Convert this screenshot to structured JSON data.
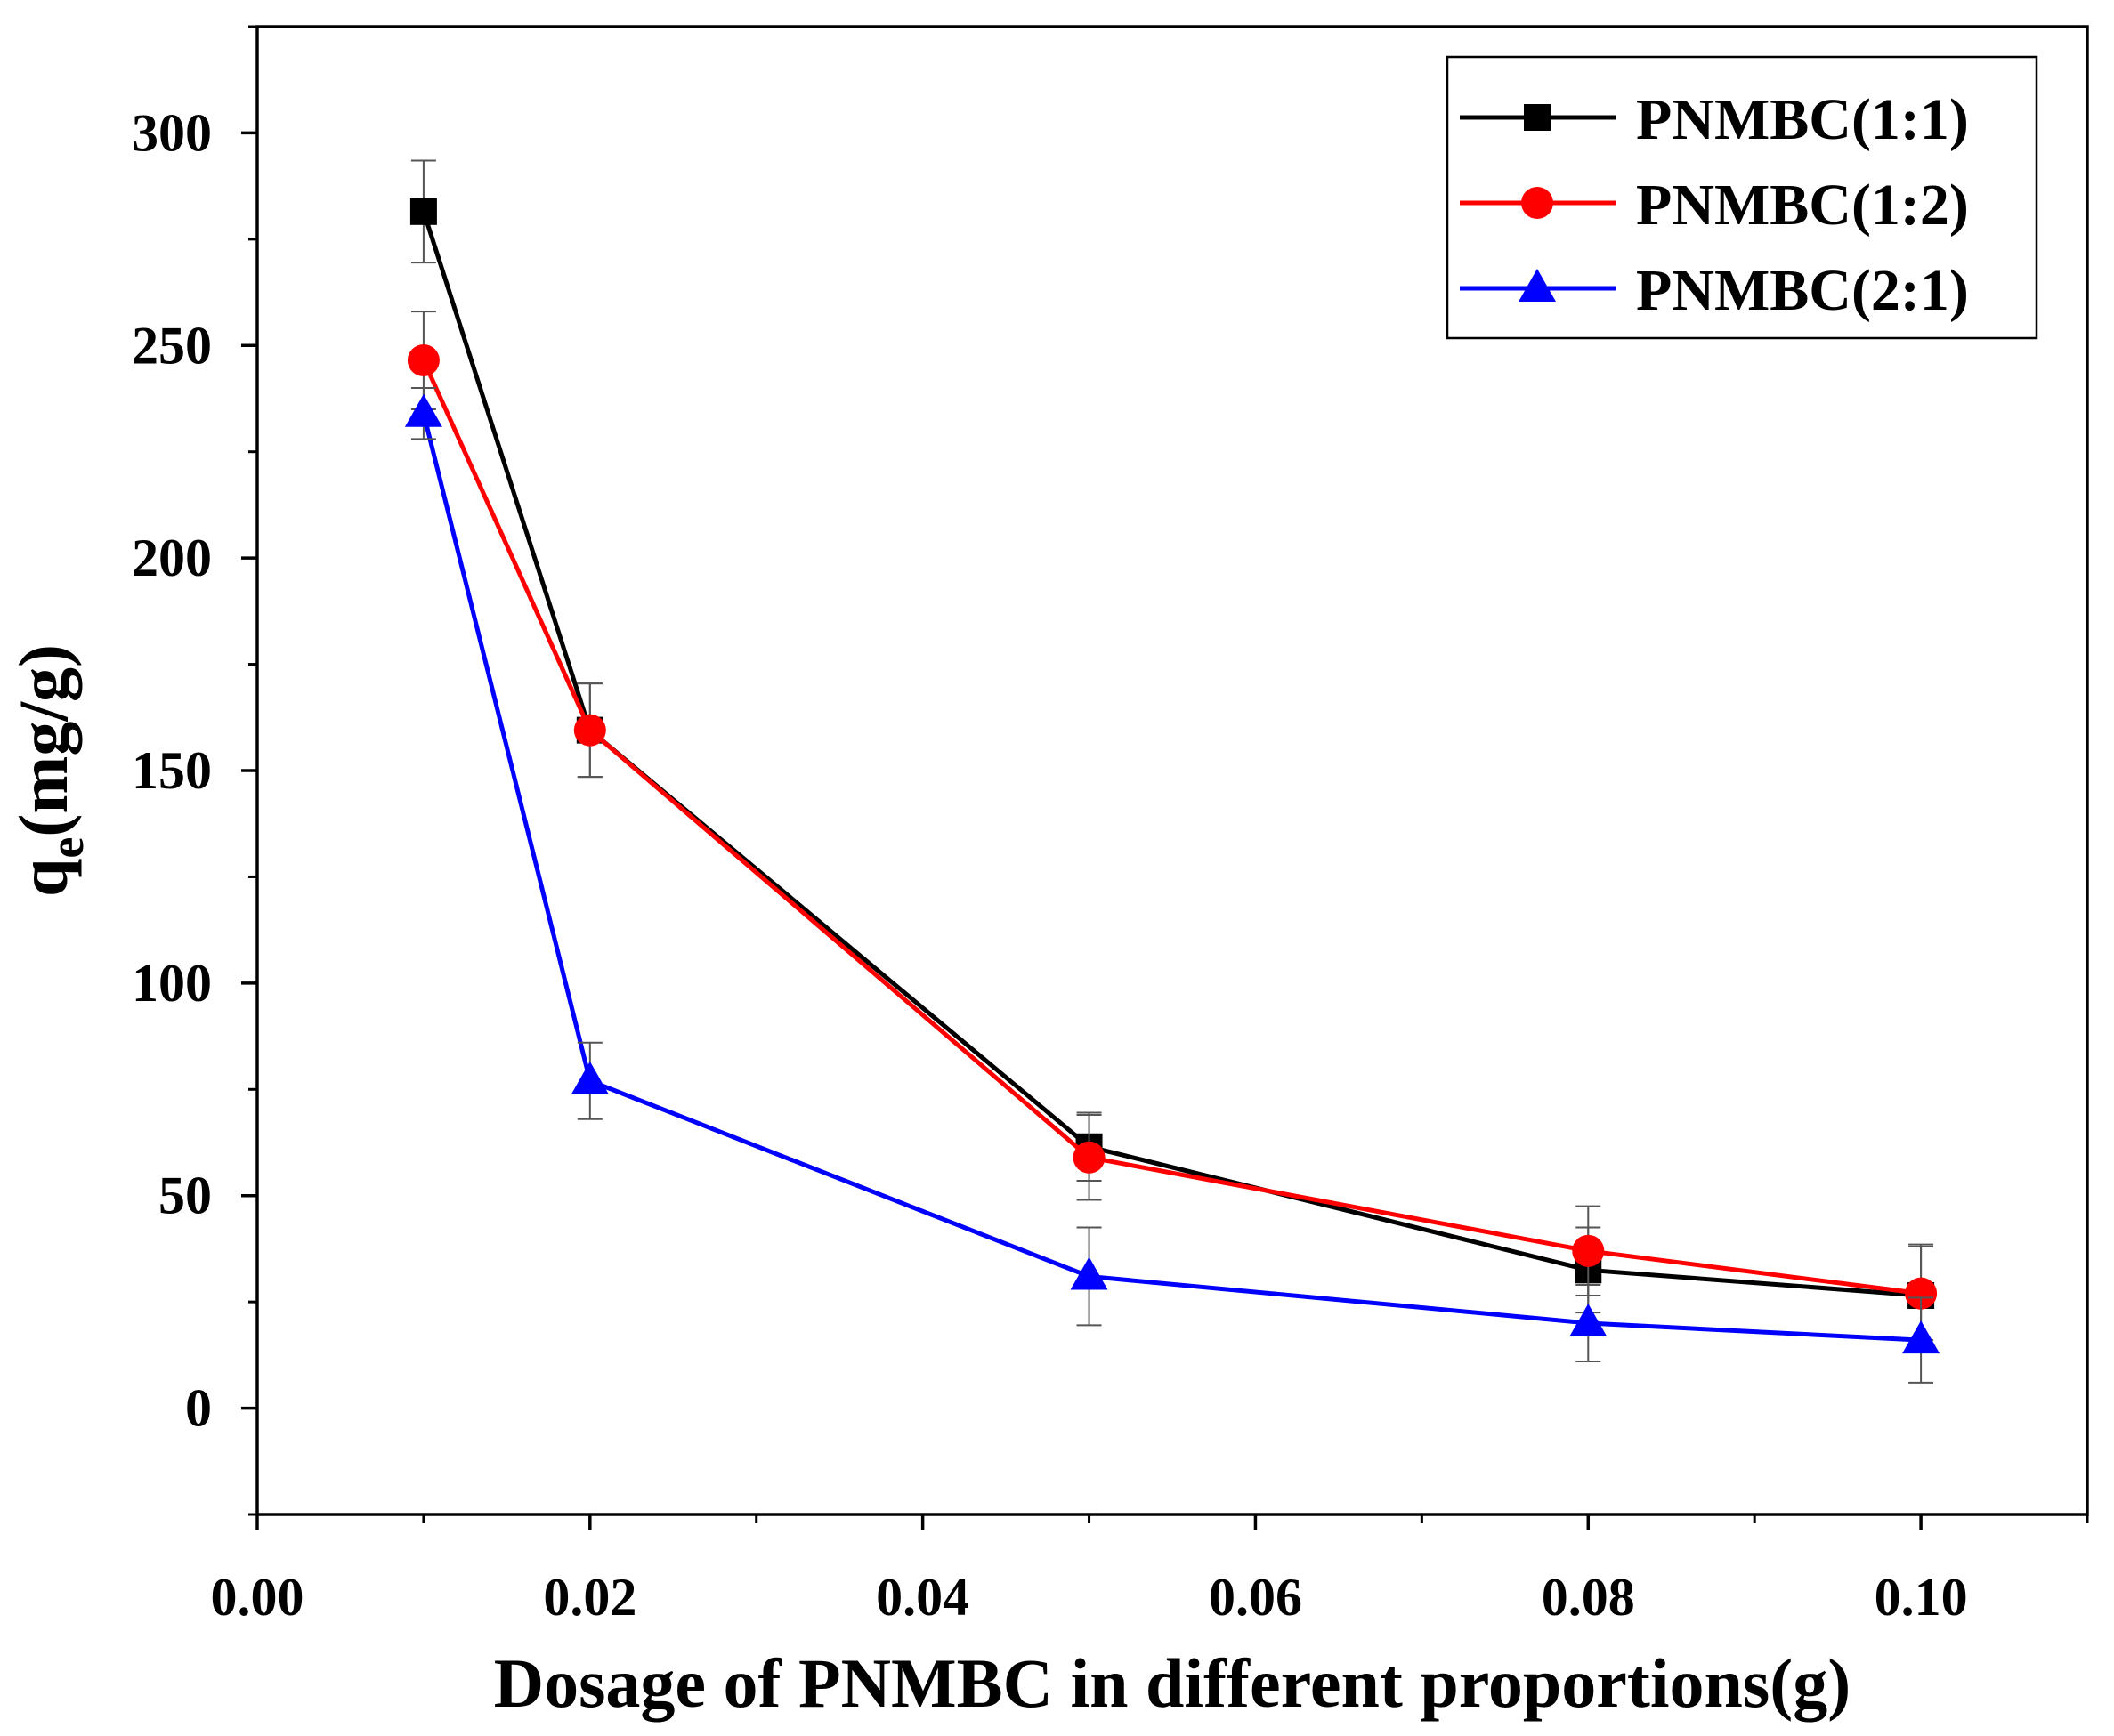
{
  "chart_data": {
    "type": "line",
    "xlabel": "Dosage of PNMBC in different proportions(g)",
    "ylabel_main": "q",
    "ylabel_sub": "e",
    "ylabel_rest": "(mg/g)",
    "xlim": [
      0.0,
      0.11
    ],
    "ylim": [
      -25,
      325
    ],
    "xticks": [
      "0.00",
      "0.02",
      "0.04",
      "0.06",
      "0.08",
      "0.10"
    ],
    "yticks": [
      "0",
      "50",
      "100",
      "150",
      "200",
      "250",
      "300"
    ],
    "legend_position": "top-right",
    "x": [
      0.01,
      0.02,
      0.05,
      0.08,
      0.1
    ],
    "series": [
      {
        "name": "PNMBC(1:1)",
        "color": "#000000",
        "marker": "square",
        "values": [
          281.5,
          159.5,
          61.5,
          32.5,
          26.5
        ],
        "errors": [
          12,
          11,
          8,
          10,
          12
        ]
      },
      {
        "name": "PNMBC(1:2)",
        "color": "#ff0000",
        "marker": "circle",
        "values": [
          246.5,
          159.5,
          59,
          37,
          27
        ],
        "errors": [
          11.5,
          11,
          10,
          10.5,
          11
        ]
      },
      {
        "name": "PNMBC(2:1)",
        "color": "#0000ff",
        "marker": "triangle",
        "values": [
          234,
          77,
          31,
          20,
          16
        ],
        "errors": [
          6,
          9,
          11.5,
          9,
          10
        ]
      }
    ]
  }
}
